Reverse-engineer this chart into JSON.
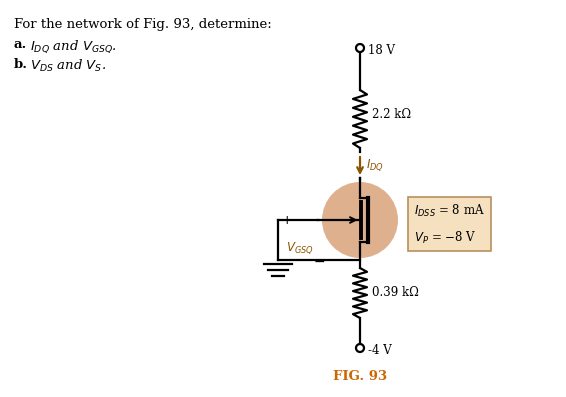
{
  "bg_color": "#ffffff",
  "title_text": "FIG. 93",
  "title_color": "#cc6600",
  "circuit_color": "#000000",
  "mosfet_circle_color": "#dba882",
  "arrow_color": "#8b5500",
  "label_color": "#8b5500",
  "vdd": "18 V",
  "vss": "-4 V",
  "rd_label": "2.2 kΩ",
  "rs_label": "0.39 kΩ",
  "box_face": "#f5e0c0",
  "box_edge": "#b89060"
}
